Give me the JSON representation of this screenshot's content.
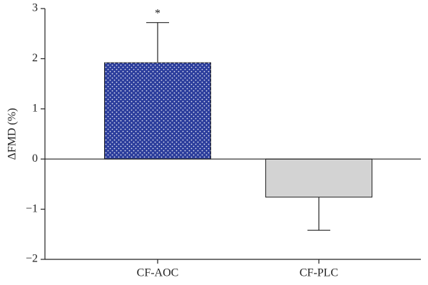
{
  "chart_data": {
    "type": "bar",
    "y_label": "ΔFMD (%)",
    "categories": [
      "CF-AOC",
      "CF-PLC"
    ],
    "values": [
      1.92,
      -0.76
    ],
    "errors": [
      0.8,
      0.66
    ],
    "colors": [
      "#2b3d9c",
      "#d3d3d3"
    ],
    "annotation": "*",
    "ylim": [
      -2,
      3
    ],
    "yticks": [
      {
        "value": -2,
        "label": "−2"
      },
      {
        "value": -1,
        "label": "−1"
      },
      0,
      1,
      2,
      3
    ]
  }
}
